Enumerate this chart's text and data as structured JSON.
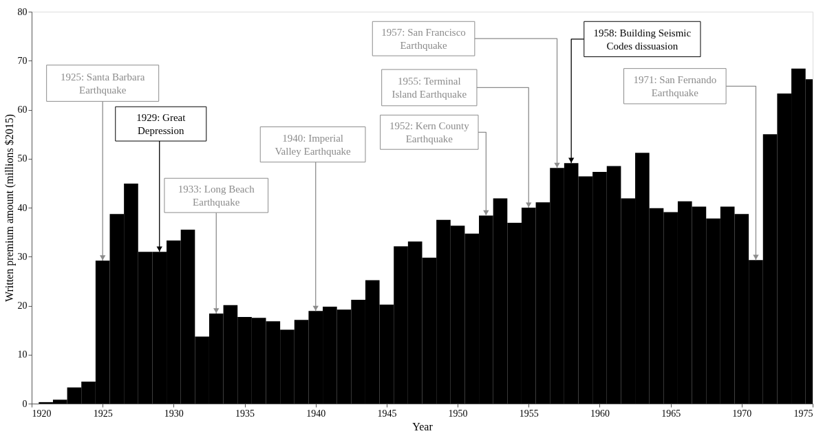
{
  "chart_data": {
    "type": "bar",
    "xlabel": "Year",
    "ylabel": "Written premium amount (millions $2015)",
    "color": "#000000",
    "x": [
      1921,
      1922,
      1923,
      1924,
      1925,
      1926,
      1927,
      1928,
      1929,
      1930,
      1931,
      1932,
      1933,
      1934,
      1935,
      1936,
      1937,
      1938,
      1939,
      1940,
      1941,
      1942,
      1943,
      1944,
      1945,
      1946,
      1947,
      1948,
      1949,
      1950,
      1951,
      1952,
      1953,
      1954,
      1955,
      1956,
      1957,
      1958,
      1959,
      1960,
      1961,
      1962,
      1963,
      1964,
      1965,
      1966,
      1967,
      1968,
      1969,
      1970,
      1971,
      1972,
      1973,
      1974,
      1975
    ],
    "values": [
      0.3,
      0.8,
      3.3,
      4.5,
      29.2,
      38.7,
      44.9,
      31.0,
      31.0,
      33.3,
      35.5,
      13.7,
      18.4,
      20.1,
      17.7,
      17.5,
      16.8,
      15.1,
      17.1,
      18.9,
      19.8,
      19.2,
      21.2,
      25.2,
      20.2,
      32.1,
      33.1,
      29.8,
      37.5,
      36.3,
      34.7,
      38.4,
      41.9,
      36.9,
      40.0,
      41.1,
      48.1,
      49.1,
      46.4,
      47.3,
      48.5,
      41.9,
      51.2,
      39.9,
      39.1,
      41.3,
      40.2,
      37.8,
      40.2,
      38.7,
      29.3,
      55.0,
      63.3,
      68.4,
      66.2
    ],
    "xlim": [
      1920,
      1975
    ],
    "ylim": [
      0,
      80
    ],
    "xticks": [
      1920,
      1925,
      1930,
      1935,
      1940,
      1945,
      1950,
      1955,
      1960,
      1965,
      1970,
      1975
    ],
    "yticks": [
      0,
      10,
      20,
      30,
      40,
      50,
      60,
      70,
      80
    ],
    "annotations": [
      {
        "text": "1925: Santa Barbara Earthquake",
        "x": 1925,
        "y": 29.2
      },
      {
        "text": "1929: Great Depression",
        "x": 1929,
        "y": 31.0
      },
      {
        "text": "1933: Long Beach Earthquake",
        "x": 1933,
        "y": 18.4
      },
      {
        "text": "1940: Imperial Valley Earthquake",
        "x": 1940,
        "y": 18.9
      },
      {
        "text": "1952: Kern County Earthquake",
        "x": 1952,
        "y": 38.4
      },
      {
        "text": "1955: Terminal Island Earthquake",
        "x": 1955,
        "y": 40.0
      },
      {
        "text": "1957: San Francisco Earthquake",
        "x": 1957,
        "y": 48.1
      },
      {
        "text": "1958: Building Seismic Codes dissuasion",
        "x": 1958,
        "y": 49.1
      },
      {
        "text": "1971: San Fernando Earthquake",
        "x": 1971,
        "y": 29.3
      }
    ]
  }
}
